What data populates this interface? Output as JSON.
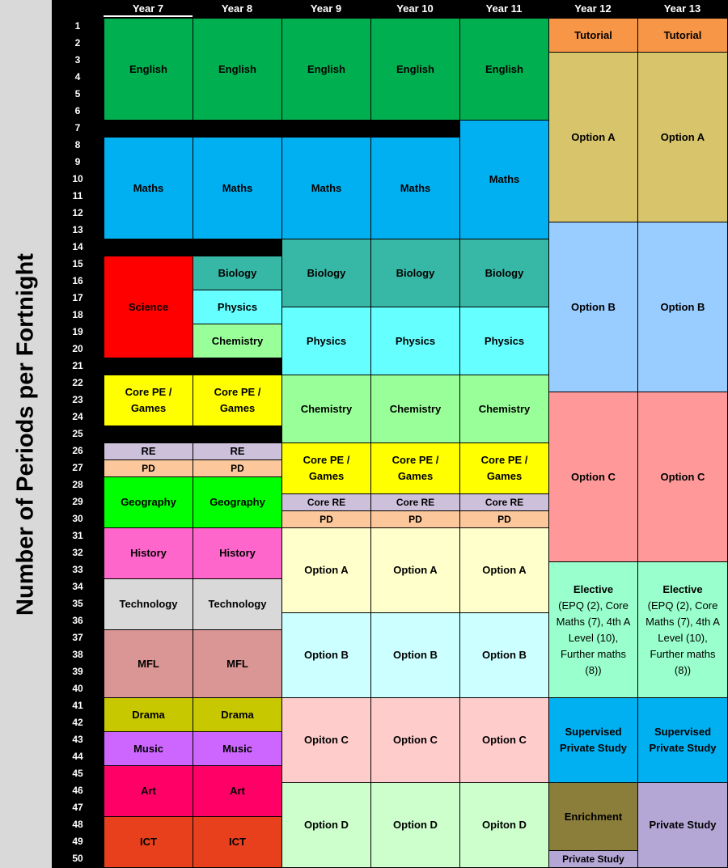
{
  "side_title": "Number of Periods per Fortnight",
  "years": [
    "Year 7",
    "Year 8",
    "Year 9",
    "Year 10",
    "Year 11",
    "Year 12",
    "Year 13"
  ],
  "periods": [
    1,
    2,
    3,
    4,
    5,
    6,
    7,
    8,
    9,
    10,
    11,
    12,
    13,
    14,
    15,
    16,
    17,
    18,
    19,
    20,
    21,
    22,
    23,
    24,
    25,
    26,
    27,
    28,
    29,
    30,
    31,
    32,
    33,
    34,
    35,
    36,
    37,
    38,
    39,
    40,
    41,
    42,
    43,
    44,
    45,
    46,
    47,
    48,
    49,
    50
  ],
  "colors": {
    "english": "#00b050",
    "maths": "#00b0f0",
    "science": "#ff0000",
    "biology": "#37b8a6",
    "physics": "#66ffff",
    "chemistry": "#99ff99",
    "core_pe": "#ffff00",
    "re": "#ccc0da",
    "pd": "#fcc89b",
    "geography": "#00ff00",
    "history": "#ff66cc",
    "technology": "#d9d9d9",
    "mfl": "#da9694",
    "drama": "#c8c800",
    "music": "#cc66ff",
    "art": "#ff0066",
    "ict": "#e8401c",
    "option_a_lower": "#ffffcc",
    "option_b_lower": "#ccffff",
    "option_c_lower": "#ffcccc",
    "option_d_lower": "#ccffcc",
    "tutorial": "#f79646",
    "option_a_upper": "#d8c46a",
    "option_b_upper": "#99ccff",
    "option_c_upper": "#ff9999",
    "elective": "#99ffcc",
    "supervised": "#00b0f0",
    "enrichment": "#8b7d3a",
    "private_study": "#b4a7d6"
  },
  "blocks": [
    {
      "col": 0,
      "start": 1,
      "end": 7,
      "label": "English",
      "color": "english"
    },
    {
      "col": 0,
      "start": 8,
      "end": 14,
      "label": "Maths",
      "color": "maths"
    },
    {
      "col": 0,
      "start": 15,
      "end": 21,
      "label": "Science",
      "color": "science"
    },
    {
      "col": 0,
      "start": 22,
      "end": 25,
      "label": "Core PE / Games",
      "color": "core_pe"
    },
    {
      "col": 0,
      "start": 26,
      "end": 27,
      "label": "RE",
      "color": "re"
    },
    {
      "col": 0,
      "start": 27,
      "end": 28,
      "label": "PD",
      "color": "pd",
      "small": true
    },
    {
      "col": 0,
      "start": 28,
      "end": 31,
      "label": "Geography",
      "color": "geography"
    },
    {
      "col": 0,
      "start": 31,
      "end": 34,
      "label": "History",
      "color": "history"
    },
    {
      "col": 0,
      "start": 34,
      "end": 37,
      "label": "Technology",
      "color": "technology"
    },
    {
      "col": 0,
      "start": 37,
      "end": 41,
      "label": "MFL",
      "color": "mfl"
    },
    {
      "col": 0,
      "start": 41,
      "end": 43,
      "label": "Drama",
      "color": "drama"
    },
    {
      "col": 0,
      "start": 43,
      "end": 45,
      "label": "Music",
      "color": "music"
    },
    {
      "col": 0,
      "start": 45,
      "end": 48,
      "label": "Art",
      "color": "art"
    },
    {
      "col": 0,
      "start": 48,
      "end": 51,
      "label": "ICT",
      "color": "ict"
    },
    {
      "col": 1,
      "start": 1,
      "end": 7,
      "label": "English",
      "color": "english"
    },
    {
      "col": 1,
      "start": 8,
      "end": 14,
      "label": "Maths",
      "color": "maths"
    },
    {
      "col": 1,
      "start": 15,
      "end": 17,
      "label": "Biology",
      "color": "biology"
    },
    {
      "col": 1,
      "start": 17,
      "end": 19,
      "label": "Physics",
      "color": "physics"
    },
    {
      "col": 1,
      "start": 19,
      "end": 21,
      "label": "Chemistry",
      "color": "chemistry"
    },
    {
      "col": 1,
      "start": 22,
      "end": 25,
      "label": "Core PE / Games",
      "color": "core_pe"
    },
    {
      "col": 1,
      "start": 26,
      "end": 27,
      "label": "RE",
      "color": "re"
    },
    {
      "col": 1,
      "start": 27,
      "end": 28,
      "label": "PD",
      "color": "pd",
      "small": true
    },
    {
      "col": 1,
      "start": 28,
      "end": 31,
      "label": "Geography",
      "color": "geography"
    },
    {
      "col": 1,
      "start": 31,
      "end": 34,
      "label": "History",
      "color": "history"
    },
    {
      "col": 1,
      "start": 34,
      "end": 37,
      "label": "Technology",
      "color": "technology"
    },
    {
      "col": 1,
      "start": 37,
      "end": 41,
      "label": "MFL",
      "color": "mfl"
    },
    {
      "col": 1,
      "start": 41,
      "end": 43,
      "label": "Drama",
      "color": "drama"
    },
    {
      "col": 1,
      "start": 43,
      "end": 45,
      "label": "Music",
      "color": "music"
    },
    {
      "col": 1,
      "start": 45,
      "end": 48,
      "label": "Art",
      "color": "art"
    },
    {
      "col": 1,
      "start": 48,
      "end": 51,
      "label": "ICT",
      "color": "ict"
    },
    {
      "col": 2,
      "start": 1,
      "end": 7,
      "label": "English",
      "color": "english"
    },
    {
      "col": 2,
      "start": 8,
      "end": 14,
      "label": "Maths",
      "color": "maths"
    },
    {
      "col": 2,
      "start": 14,
      "end": 18,
      "label": "Biology",
      "color": "biology"
    },
    {
      "col": 2,
      "start": 18,
      "end": 22,
      "label": "Physics",
      "color": "physics"
    },
    {
      "col": 2,
      "start": 22,
      "end": 26,
      "label": "Chemistry",
      "color": "chemistry"
    },
    {
      "col": 2,
      "start": 26,
      "end": 29,
      "label": "Core PE / Games",
      "color": "core_pe"
    },
    {
      "col": 2,
      "start": 29,
      "end": 30,
      "label": "Core RE",
      "color": "re",
      "small": true
    },
    {
      "col": 2,
      "start": 30,
      "end": 31,
      "label": "PD",
      "color": "pd",
      "small": true
    },
    {
      "col": 2,
      "start": 31,
      "end": 36,
      "label": "Option A",
      "color": "option_a_lower"
    },
    {
      "col": 2,
      "start": 36,
      "end": 41,
      "label": "Option B",
      "color": "option_b_lower"
    },
    {
      "col": 2,
      "start": 41,
      "end": 46,
      "label": "Opiton C",
      "color": "option_c_lower"
    },
    {
      "col": 2,
      "start": 46,
      "end": 51,
      "label": "Option D",
      "color": "option_d_lower"
    },
    {
      "col": 3,
      "start": 1,
      "end": 7,
      "label": "English",
      "color": "english"
    },
    {
      "col": 3,
      "start": 8,
      "end": 14,
      "label": "Maths",
      "color": "maths"
    },
    {
      "col": 3,
      "start": 14,
      "end": 18,
      "label": "Biology",
      "color": "biology"
    },
    {
      "col": 3,
      "start": 18,
      "end": 22,
      "label": "Physics",
      "color": "physics"
    },
    {
      "col": 3,
      "start": 22,
      "end": 26,
      "label": "Chemistry",
      "color": "chemistry"
    },
    {
      "col": 3,
      "start": 26,
      "end": 29,
      "label": "Core PE / Games",
      "color": "core_pe"
    },
    {
      "col": 3,
      "start": 29,
      "end": 30,
      "label": "Core RE",
      "color": "re",
      "small": true
    },
    {
      "col": 3,
      "start": 30,
      "end": 31,
      "label": "PD",
      "color": "pd",
      "small": true
    },
    {
      "col": 3,
      "start": 31,
      "end": 36,
      "label": "Option A",
      "color": "option_a_lower"
    },
    {
      "col": 3,
      "start": 36,
      "end": 41,
      "label": "Option B",
      "color": "option_b_lower"
    },
    {
      "col": 3,
      "start": 41,
      "end": 46,
      "label": "Option C",
      "color": "option_c_lower"
    },
    {
      "col": 3,
      "start": 46,
      "end": 51,
      "label": "Option D",
      "color": "option_d_lower"
    },
    {
      "col": 4,
      "start": 1,
      "end": 7,
      "label": "English",
      "color": "english"
    },
    {
      "col": 4,
      "start": 7,
      "end": 14,
      "label": "Maths",
      "color": "maths"
    },
    {
      "col": 4,
      "start": 14,
      "end": 18,
      "label": "Biology",
      "color": "biology"
    },
    {
      "col": 4,
      "start": 18,
      "end": 22,
      "label": "Physics",
      "color": "physics"
    },
    {
      "col": 4,
      "start": 22,
      "end": 26,
      "label": "Chemistry",
      "color": "chemistry"
    },
    {
      "col": 4,
      "start": 26,
      "end": 29,
      "label": "Core PE / Games",
      "color": "core_pe"
    },
    {
      "col": 4,
      "start": 29,
      "end": 30,
      "label": "Core RE",
      "color": "re",
      "small": true
    },
    {
      "col": 4,
      "start": 30,
      "end": 31,
      "label": "PD",
      "color": "pd",
      "small": true
    },
    {
      "col": 4,
      "start": 31,
      "end": 36,
      "label": "Option A",
      "color": "option_a_lower"
    },
    {
      "col": 4,
      "start": 36,
      "end": 41,
      "label": "Option B",
      "color": "option_b_lower"
    },
    {
      "col": 4,
      "start": 41,
      "end": 46,
      "label": "Option C",
      "color": "option_c_lower"
    },
    {
      "col": 4,
      "start": 46,
      "end": 51,
      "label": "Opiton D",
      "color": "option_d_lower"
    },
    {
      "col": 5,
      "start": 1,
      "end": 3,
      "label": "Tutorial",
      "color": "tutorial"
    },
    {
      "col": 5,
      "start": 3,
      "end": 13,
      "label": "Option A",
      "color": "option_a_upper"
    },
    {
      "col": 5,
      "start": 13,
      "end": 23,
      "label": "Option B",
      "color": "option_b_upper"
    },
    {
      "col": 5,
      "start": 23,
      "end": 33,
      "label": "Option C",
      "color": "option_c_upper"
    },
    {
      "col": 5,
      "start": 33,
      "end": 41,
      "label": "Elective\n(EPQ (2), Core Maths (7), 4th A Level (10), Further maths (8))",
      "color": "elective"
    },
    {
      "col": 5,
      "start": 41,
      "end": 46,
      "label": "Supervised Private Study",
      "color": "supervised"
    },
    {
      "col": 5,
      "start": 46,
      "end": 50,
      "label": "Enrichment",
      "color": "enrichment"
    },
    {
      "col": 5,
      "start": 50,
      "end": 51,
      "label": "Private Study",
      "color": "private_study",
      "small": true
    },
    {
      "col": 6,
      "start": 1,
      "end": 3,
      "label": "Tutorial",
      "color": "tutorial"
    },
    {
      "col": 6,
      "start": 3,
      "end": 13,
      "label": "Option A",
      "color": "option_a_upper"
    },
    {
      "col": 6,
      "start": 13,
      "end": 23,
      "label": "Option B",
      "color": "option_b_upper"
    },
    {
      "col": 6,
      "start": 23,
      "end": 33,
      "label": "Option C",
      "color": "option_c_upper"
    },
    {
      "col": 6,
      "start": 33,
      "end": 41,
      "label": "Elective\n(EPQ (2), Core Maths (7), 4th A Level (10), Further maths (8))",
      "color": "elective"
    },
    {
      "col": 6,
      "start": 41,
      "end": 46,
      "label": "Supervised Private Study",
      "color": "supervised"
    },
    {
      "col": 6,
      "start": 46,
      "end": 51,
      "label": "Private Study",
      "color": "private_study"
    }
  ]
}
